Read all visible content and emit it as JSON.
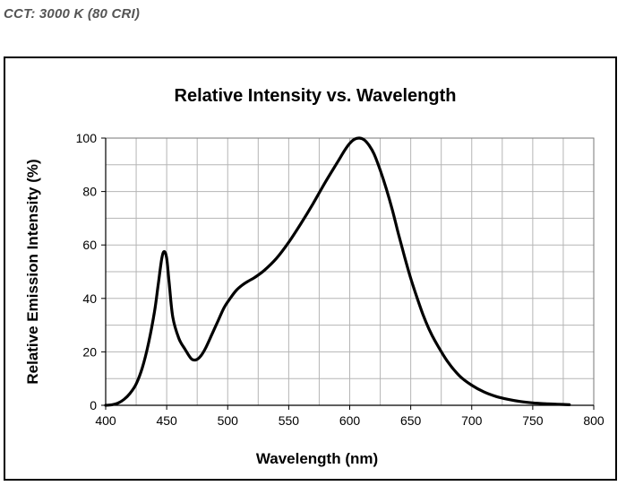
{
  "caption": "CCT: 3000 K (80 CRI)",
  "chart_data": {
    "type": "line",
    "title": "Relative Intensity vs. Wavelength",
    "xlabel": "Wavelength (nm)",
    "ylabel": "Relative Emission Intensity (%)",
    "xlim": [
      400,
      800
    ],
    "ylim": [
      0,
      100
    ],
    "xticks": [
      400,
      450,
      500,
      550,
      600,
      650,
      700,
      750,
      800
    ],
    "yticks": [
      0,
      20,
      40,
      60,
      80,
      100
    ],
    "x_minor_step": 25,
    "y_minor_step": 10,
    "grid": true,
    "legend": "none",
    "series": [
      {
        "color": "#000000",
        "x": [
          400,
          405,
          410,
          415,
          420,
          425,
          430,
          435,
          440,
          443,
          446,
          448,
          450,
          452,
          455,
          460,
          465,
          470,
          474,
          478,
          482,
          487,
          492,
          497,
          502,
          507,
          512,
          517,
          522,
          530,
          540,
          550,
          560,
          570,
          580,
          590,
          596,
          600,
          604,
          608,
          612,
          616,
          620,
          625,
          630,
          635,
          640,
          645,
          650,
          655,
          660,
          665,
          670,
          680,
          690,
          700,
          710,
          720,
          730,
          740,
          750,
          760,
          770,
          780
        ],
        "y": [
          0,
          0.2,
          0.8,
          2.2,
          4.5,
          8,
          14,
          23,
          35,
          45,
          55,
          57.5,
          55,
          46,
          33,
          25,
          21,
          17.5,
          17,
          18.5,
          21.5,
          26.5,
          31.5,
          36.5,
          40,
          43,
          45,
          46.5,
          47.8,
          50.5,
          55,
          61,
          68,
          75.5,
          83.5,
          91,
          95.5,
          98,
          99.6,
          100,
          99.3,
          97.2,
          94,
          88,
          81,
          73,
          64,
          55.5,
          47.5,
          40.5,
          34,
          28.5,
          24,
          16.5,
          11,
          7.5,
          5,
          3.3,
          2.2,
          1.4,
          0.9,
          0.6,
          0.4,
          0.2
        ]
      }
    ]
  }
}
